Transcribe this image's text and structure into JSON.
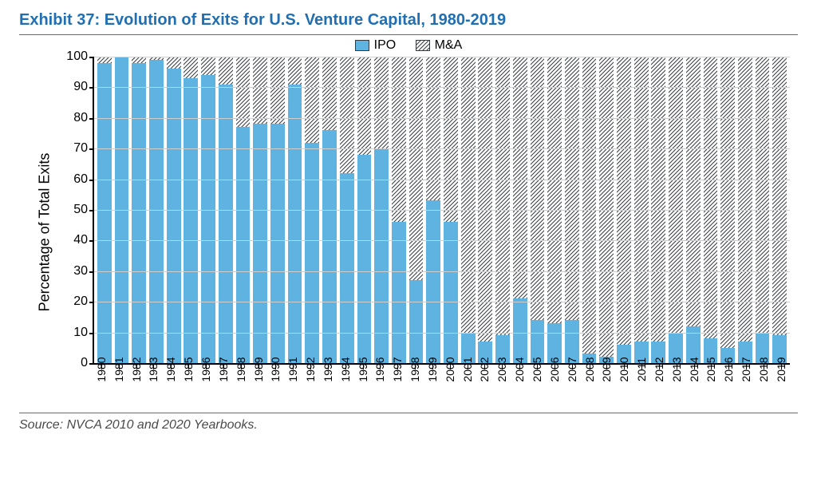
{
  "title": "Exhibit 37: Evolution of Exits for U.S. Venture Capital, 1980-2019",
  "source": "Source: NVCA 2010 and 2020 Yearbooks.",
  "legend": {
    "ipo": "IPO",
    "ma": "M&A"
  },
  "chart": {
    "type": "stacked-bar",
    "ylabel": "Percentage of Total Exits",
    "ylim": [
      0,
      100
    ],
    "ytick_step": 10,
    "background_color": "#ffffff",
    "grid_color": "#cfcfcf",
    "axis_color": "#000000",
    "title_color": "#1f6fb2",
    "title_fontsize": 20,
    "label_fontsize": 18,
    "tick_fontsize": 16,
    "xlab_fontsize": 14,
    "bar_width_pct": 82,
    "series": [
      {
        "key": "ipo",
        "color": "#5fb3e0",
        "pattern": "solid"
      },
      {
        "key": "ma",
        "color": "#ffffff",
        "pattern": "hatch",
        "pattern_stroke": "#33393f",
        "pattern_spacing": 5
      }
    ],
    "years": [
      1980,
      1981,
      1982,
      1983,
      1984,
      1985,
      1986,
      1987,
      1988,
      1989,
      1990,
      1991,
      1992,
      1993,
      1994,
      1995,
      1996,
      1997,
      1998,
      1999,
      2000,
      2001,
      2002,
      2003,
      2004,
      2005,
      2006,
      2007,
      2008,
      2009,
      2010,
      2011,
      2012,
      2013,
      2014,
      2015,
      2016,
      2017,
      2018,
      2019
    ],
    "ipo_pct": [
      98,
      100,
      98,
      99,
      96,
      93,
      94,
      91,
      77,
      78,
      78,
      91,
      72,
      76,
      62,
      68,
      70,
      46,
      27,
      53,
      46,
      10,
      7,
      9,
      21,
      14,
      13,
      14,
      3,
      2,
      6,
      7,
      7,
      10,
      12,
      8,
      5,
      7,
      10,
      9
    ]
  }
}
